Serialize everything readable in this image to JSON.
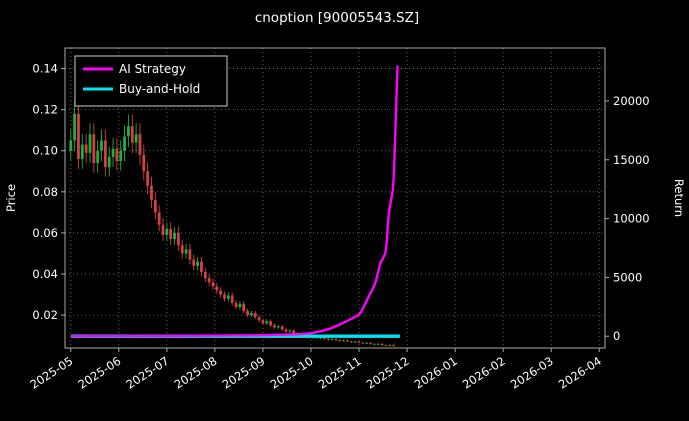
{
  "figure": {
    "title": "cnoption [90005543.SZ]"
  },
  "chart_data": {
    "type": "candlestick+line",
    "title": "cnoption [90005543.SZ]",
    "x_axis": {
      "xlim": [
        -0.12,
        11.12
      ],
      "tick_positions": [
        0,
        1,
        2,
        3,
        4,
        5,
        6,
        7,
        8,
        9,
        10,
        11
      ],
      "tick_labels": [
        "2025-05",
        "2025-06",
        "2025-07",
        "2025-08",
        "2025-09",
        "2025-10",
        "2025-11",
        "2025-12",
        "2026-01",
        "2026-02",
        "2026-03",
        "2026-04"
      ]
    },
    "left_axis": {
      "label": "Price",
      "ylim": [
        0.004,
        0.15
      ],
      "ticks": [
        0.02,
        0.04,
        0.06,
        0.08,
        0.1,
        0.12,
        0.14
      ],
      "tick_labels": [
        "0.02",
        "0.04",
        "0.06",
        "0.08",
        "0.10",
        "0.12",
        "0.14"
      ]
    },
    "right_axis": {
      "label": "Return",
      "ylim": [
        -1000,
        24500
      ],
      "ticks": [
        0,
        5000,
        10000,
        15000,
        20000
      ],
      "tick_labels": [
        "0",
        "5000",
        "10000",
        "15000",
        "20000"
      ]
    },
    "legend": [
      {
        "label": "AI Strategy",
        "color": "#ff00ff"
      },
      {
        "label": "Buy-and-Hold",
        "color": "#00e5ee"
      }
    ],
    "colors": {
      "background": "#000000",
      "text": "#ffffff",
      "grid": "#787878",
      "spine": "#aaaaaa",
      "up": "#1faf3c",
      "down": "#d24242",
      "legend_border": "#cccccc"
    },
    "candle_columns": [
      "t_months_from_2025-05",
      "open",
      "high",
      "low",
      "close"
    ],
    "candles": [
      [
        0,
        0.1,
        0.1103,
        0.095,
        0.105
      ],
      [
        0.08,
        0.105,
        0.1239,
        0.0998,
        0.118
      ],
      [
        0.16,
        0.118,
        0.1239,
        0.0912,
        0.096
      ],
      [
        0.24,
        0.096,
        0.1082,
        0.0912,
        0.103
      ],
      [
        0.32,
        0.103,
        0.1082,
        0.0941,
        0.099
      ],
      [
        0.4,
        0.099,
        0.1134,
        0.0941,
        0.108
      ],
      [
        0.48,
        0.108,
        0.1134,
        0.0893,
        0.094
      ],
      [
        0.56,
        0.094,
        0.105,
        0.0893,
        0.1
      ],
      [
        0.64,
        0.1,
        0.1103,
        0.095,
        0.105
      ],
      [
        0.72,
        0.105,
        0.1103,
        0.0874,
        0.092
      ],
      [
        0.8,
        0.092,
        0.1019,
        0.0874,
        0.097
      ],
      [
        0.88,
        0.097,
        0.1061,
        0.0922,
        0.101
      ],
      [
        0.96,
        0.101,
        0.1061,
        0.0903,
        0.095
      ],
      [
        1.04,
        0.095,
        0.105,
        0.0903,
        0.1
      ],
      [
        1.12,
        0.1,
        0.1124,
        0.095,
        0.107
      ],
      [
        1.2,
        0.107,
        0.1176,
        0.1017,
        0.112
      ],
      [
        1.28,
        0.112,
        0.1176,
        0.0988,
        0.104
      ],
      [
        1.36,
        0.104,
        0.1134,
        0.0988,
        0.108
      ],
      [
        1.44,
        0.108,
        0.1134,
        0.0931,
        0.098
      ],
      [
        1.52,
        0.098,
        0.1029,
        0.0855,
        0.09
      ],
      [
        1.6,
        0.09,
        0.0945,
        0.0789,
        0.083
      ],
      [
        1.68,
        0.083,
        0.0872,
        0.0722,
        0.076
      ],
      [
        1.76,
        0.076,
        0.0798,
        0.0665,
        0.07
      ],
      [
        1.84,
        0.07,
        0.0735,
        0.0608,
        0.064
      ],
      [
        1.92,
        0.064,
        0.0672,
        0.0561,
        0.059
      ],
      [
        2,
        0.059,
        0.0651,
        0.0561,
        0.062
      ],
      [
        2.08,
        0.062,
        0.0651,
        0.0542,
        0.057
      ],
      [
        2.16,
        0.057,
        0.063,
        0.0542,
        0.06
      ],
      [
        2.24,
        0.06,
        0.063,
        0.0513,
        0.054
      ],
      [
        2.32,
        0.054,
        0.0567,
        0.0475,
        0.05
      ],
      [
        2.4,
        0.05,
        0.0546,
        0.0475,
        0.052
      ],
      [
        2.48,
        0.052,
        0.0546,
        0.0447,
        0.047
      ],
      [
        2.56,
        0.047,
        0.0494,
        0.0418,
        0.044
      ],
      [
        2.64,
        0.044,
        0.0483,
        0.0418,
        0.046
      ],
      [
        2.72,
        0.046,
        0.0483,
        0.039,
        0.041
      ],
      [
        2.8,
        0.041,
        0.0431,
        0.0361,
        0.038
      ],
      [
        2.88,
        0.038,
        0.0399,
        0.0342,
        0.036
      ],
      [
        2.96,
        0.036,
        0.0378,
        0.0323,
        0.034
      ],
      [
        3.04,
        0.034,
        0.0357,
        0.0304,
        0.032
      ],
      [
        3.12,
        0.032,
        0.0336,
        0.0285,
        0.03
      ],
      [
        3.2,
        0.03,
        0.0315,
        0.0266,
        0.028
      ],
      [
        3.28,
        0.028,
        0.031,
        0.0266,
        0.0295
      ],
      [
        3.36,
        0.0295,
        0.031,
        0.0247,
        0.026
      ],
      [
        3.44,
        0.026,
        0.0273,
        0.0228,
        0.024
      ],
      [
        3.52,
        0.024,
        0.0268,
        0.0228,
        0.0255
      ],
      [
        3.6,
        0.0255,
        0.0268,
        0.0209,
        0.022
      ],
      [
        3.68,
        0.022,
        0.0231,
        0.019,
        0.02
      ],
      [
        3.76,
        0.02,
        0.0221,
        0.019,
        0.021
      ],
      [
        3.84,
        0.021,
        0.0221,
        0.0181,
        0.019
      ],
      [
        3.92,
        0.019,
        0.02,
        0.0166,
        0.0175
      ],
      [
        4,
        0.0175,
        0.0184,
        0.0152,
        0.016
      ],
      [
        4.08,
        0.016,
        0.0179,
        0.0152,
        0.017
      ],
      [
        4.16,
        0.017,
        0.0179,
        0.0143,
        0.015
      ],
      [
        4.24,
        0.015,
        0.0158,
        0.0133,
        0.014
      ],
      [
        4.32,
        0.014,
        0.0152,
        0.0133,
        0.0145
      ],
      [
        4.4,
        0.0145,
        0.0152,
        0.0124,
        0.013
      ],
      [
        4.48,
        0.013,
        0.0137,
        0.0114,
        0.012
      ],
      [
        4.56,
        0.012,
        0.0131,
        0.0114,
        0.0125
      ],
      [
        4.64,
        0.0125,
        0.0131,
        0.0105,
        0.011
      ],
      [
        4.72,
        0.011,
        0.0116,
        0.01,
        0.0105
      ],
      [
        4.8,
        0.0105,
        0.011,
        0.0095,
        0.01
      ],
      [
        4.88,
        0.01,
        0.0105,
        0.009,
        0.0095
      ],
      [
        4.96,
        0.0095,
        0.01,
        0.0086,
        0.009
      ],
      [
        5.04,
        0.009,
        0.01,
        0.0086,
        0.0095
      ],
      [
        5.12,
        0.0095,
        0.01,
        0.0084,
        0.0088
      ],
      [
        5.2,
        0.0088,
        0.0097,
        0.0084,
        0.0092
      ],
      [
        5.28,
        0.0092,
        0.0097,
        0.0081,
        0.0085
      ],
      [
        5.36,
        0.0085,
        0.0089,
        0.0076,
        0.008
      ],
      [
        5.44,
        0.008,
        0.0087,
        0.0076,
        0.0083
      ],
      [
        5.52,
        0.0083,
        0.0087,
        0.0074,
        0.0078
      ],
      [
        5.6,
        0.0078,
        0.0082,
        0.007,
        0.0074
      ],
      [
        5.68,
        0.0074,
        0.0081,
        0.007,
        0.0077
      ],
      [
        5.76,
        0.0077,
        0.0081,
        0.0068,
        0.0072
      ],
      [
        5.84,
        0.0072,
        0.0076,
        0.0065,
        0.0068
      ],
      [
        5.92,
        0.0068,
        0.0075,
        0.0065,
        0.0071
      ],
      [
        6,
        0.0071,
        0.0075,
        0.0063,
        0.0066
      ],
      [
        6.08,
        0.0066,
        0.0069,
        0.0059,
        0.0062
      ],
      [
        6.16,
        0.0062,
        0.0068,
        0.0059,
        0.0065
      ],
      [
        6.24,
        0.0065,
        0.0068,
        0.0057,
        0.006
      ],
      [
        6.32,
        0.006,
        0.0063,
        0.0054,
        0.0057
      ],
      [
        6.4,
        0.0057,
        0.0063,
        0.0054,
        0.006
      ],
      [
        6.48,
        0.006,
        0.0063,
        0.0051,
        0.0054
      ],
      [
        6.56,
        0.0054,
        0.0057,
        0.0048,
        0.0051
      ],
      [
        6.64,
        0.0051,
        0.0058,
        0.0048,
        0.0055
      ],
      [
        6.72,
        0.0055,
        0.0058,
        0.0048,
        0.005
      ]
    ],
    "series": {
      "ai_strategy": {
        "name": "AI Strategy",
        "axis": "right",
        "color": "#ff00ff",
        "points": [
          [
            0,
            0
          ],
          [
            0.5,
            8
          ],
          [
            1,
            15
          ],
          [
            1.5,
            25
          ],
          [
            2,
            20
          ],
          [
            2.5,
            35
          ],
          [
            3,
            50
          ],
          [
            3.5,
            70
          ],
          [
            4,
            90
          ],
          [
            4.4,
            130
          ],
          [
            4.8,
            180
          ],
          [
            5,
            260
          ],
          [
            5.2,
            420
          ],
          [
            5.4,
            650
          ],
          [
            5.6,
            1000
          ],
          [
            5.8,
            1400
          ],
          [
            5.9,
            1600
          ],
          [
            6,
            1850
          ],
          [
            6.05,
            2100
          ],
          [
            6.1,
            2500
          ],
          [
            6.15,
            2950
          ],
          [
            6.2,
            3350
          ],
          [
            6.25,
            3750
          ],
          [
            6.3,
            4150
          ],
          [
            6.35,
            4650
          ],
          [
            6.38,
            5200
          ],
          [
            6.42,
            5800
          ],
          [
            6.45,
            6300
          ],
          [
            6.5,
            6600
          ],
          [
            6.55,
            7100
          ],
          [
            6.58,
            8100
          ],
          [
            6.6,
            9400
          ],
          [
            6.62,
            10400
          ],
          [
            6.64,
            11000
          ],
          [
            6.66,
            11400
          ],
          [
            6.68,
            11900
          ],
          [
            6.7,
            12300
          ],
          [
            6.72,
            13400
          ],
          [
            6.74,
            15400
          ],
          [
            6.76,
            17800
          ],
          [
            6.78,
            20400
          ],
          [
            6.8,
            23000
          ]
        ]
      },
      "buy_and_hold": {
        "name": "Buy-and-Hold",
        "axis": "right",
        "color": "#00e5ee",
        "points": [
          [
            0,
            0
          ],
          [
            6.85,
            0
          ]
        ]
      }
    }
  }
}
